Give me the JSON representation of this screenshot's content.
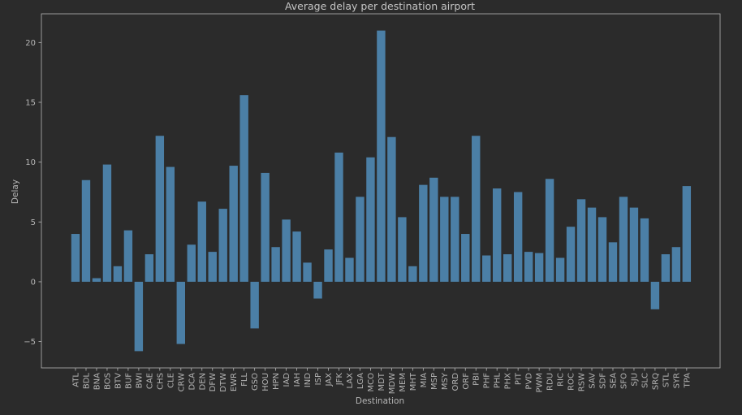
{
  "chart_data": {
    "type": "bar",
    "title": "Average delay per destination airport",
    "xlabel": "Destination",
    "ylabel": "Delay",
    "ylim": [
      -7.2,
      22.4
    ],
    "yticks": [
      -5,
      0,
      5,
      10,
      15,
      20
    ],
    "ytick_labels": [
      "−5",
      "0",
      "5",
      "10",
      "15",
      "20"
    ],
    "grid": false,
    "legend": "none",
    "colors": {
      "bar": "#4b7fa6",
      "background": "#2b2b2b",
      "axes_edge": "#b5b5b5",
      "text": "#b5b5b5"
    },
    "categories": [
      "ATL",
      "BDL",
      "BNA",
      "BOS",
      "BTV",
      "BUF",
      "BWI",
      "CAE",
      "CHS",
      "CLE",
      "CRW",
      "DCA",
      "DEN",
      "DFW",
      "DTW",
      "EWR",
      "FLL",
      "GSO",
      "HOU",
      "HPN",
      "IAD",
      "IAH",
      "IND",
      "ISP",
      "JAX",
      "JFK",
      "LAX",
      "LGA",
      "MCO",
      "MDT",
      "MDW",
      "MEM",
      "MHT",
      "MIA",
      "MSP",
      "MSY",
      "ORD",
      "ORF",
      "PBI",
      "PHF",
      "PHL",
      "PHX",
      "PIT",
      "PVD",
      "PWM",
      "RDU",
      "RIC",
      "ROC",
      "RSW",
      "SAV",
      "SDF",
      "SEA",
      "SFO",
      "SJU",
      "SLC",
      "SRQ",
      "STL",
      "SYR",
      "TPA"
    ],
    "values": [
      4.0,
      8.5,
      0.3,
      9.8,
      1.3,
      4.3,
      -5.8,
      2.3,
      12.2,
      9.6,
      -5.2,
      3.1,
      6.7,
      2.5,
      6.1,
      9.7,
      15.6,
      -3.9,
      9.1,
      2.9,
      5.2,
      4.2,
      1.6,
      -1.4,
      2.7,
      10.8,
      2.0,
      7.1,
      10.4,
      21.0,
      12.1,
      5.4,
      1.3,
      8.1,
      8.7,
      7.1,
      7.1,
      4.0,
      12.2,
      2.2,
      7.8,
      2.3,
      7.5,
      2.5,
      2.4,
      8.6,
      2.0,
      4.6,
      6.9,
      6.2,
      5.4,
      3.3,
      7.1,
      6.2,
      5.3,
      -2.3,
      2.3,
      2.9,
      8.0
    ]
  }
}
